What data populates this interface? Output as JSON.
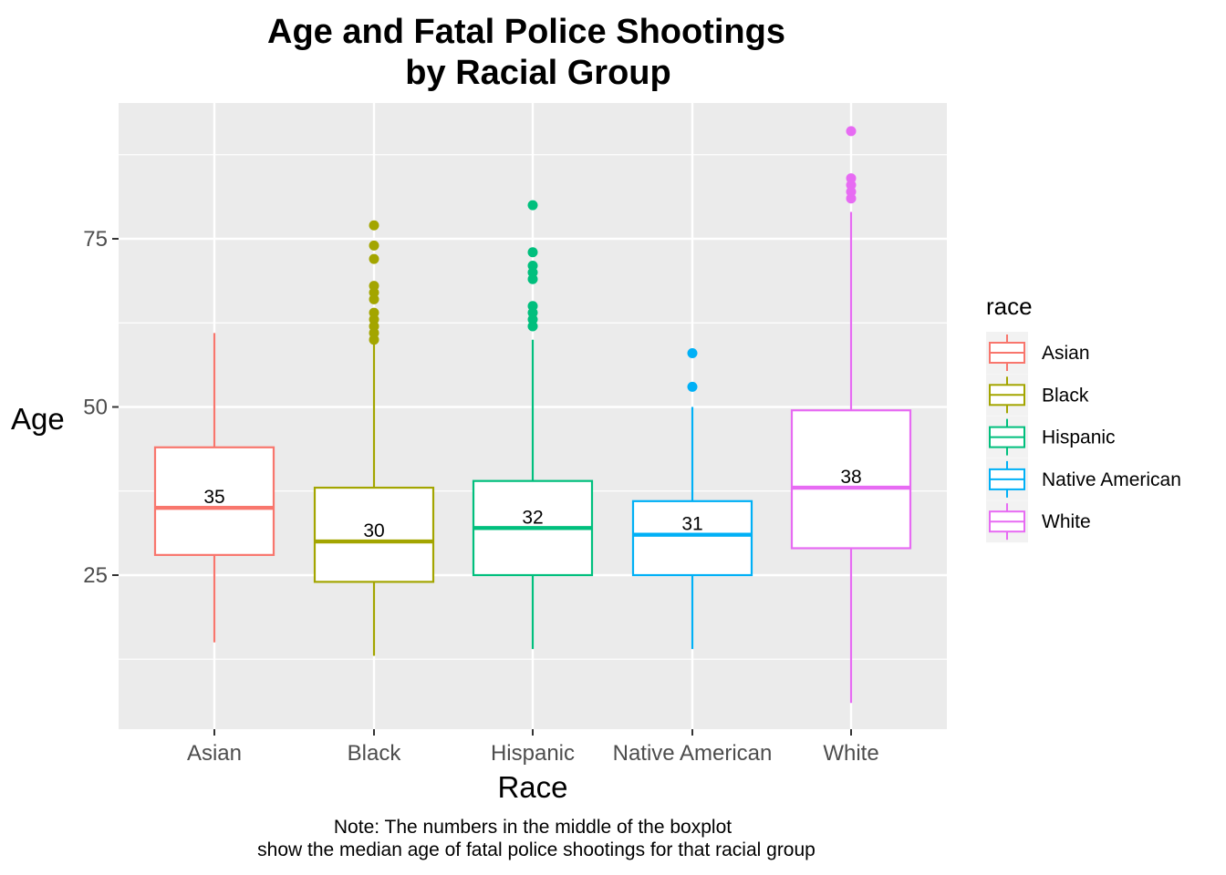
{
  "chart_data": {
    "type": "boxplot",
    "title_line1": "Age and Fatal Police Shootings",
    "title_line2": "by Racial Group",
    "xlabel": "Race",
    "ylabel": "Age",
    "ylim": [
      2,
      95
    ],
    "yticks": [
      25,
      50,
      75
    ],
    "grid": true,
    "legend": {
      "title": "race",
      "position": "right",
      "items": [
        "Asian",
        "Black",
        "Hispanic",
        "Native American",
        "White"
      ]
    },
    "caption_line1": "Note: The numbers in the middle of the boxplot",
    "caption_line2": "show the median age of fatal police shootings for that racial group",
    "categories": [
      "Asian",
      "Black",
      "Hispanic",
      "Native American",
      "White"
    ],
    "series": [
      {
        "name": "Asian",
        "color": "#F8766D",
        "min": 15,
        "q1": 28,
        "median": 35,
        "q3": 44,
        "max": 61,
        "median_label": "35",
        "outliers": []
      },
      {
        "name": "Black",
        "color": "#A3A500",
        "min": 13,
        "q1": 24,
        "median": 30,
        "q3": 38,
        "max": 60,
        "median_label": "30",
        "outliers": [
          60,
          61,
          62,
          63,
          64,
          66,
          67,
          68,
          72,
          74,
          77
        ]
      },
      {
        "name": "Hispanic",
        "color": "#00BF7D",
        "min": 14,
        "q1": 25,
        "median": 32,
        "q3": 39,
        "max": 60,
        "median_label": "32",
        "outliers": [
          62,
          63,
          64,
          65,
          69,
          70,
          71,
          73,
          80
        ]
      },
      {
        "name": "Native American",
        "color": "#00B0F6",
        "min": 14,
        "q1": 25,
        "median": 31,
        "q3": 36,
        "max": 50,
        "median_label": "31",
        "outliers": [
          53,
          58
        ]
      },
      {
        "name": "White",
        "color": "#E76BF3",
        "min": 6,
        "q1": 29,
        "median": 38,
        "q3": 49.5,
        "max": 79,
        "median_label": "38",
        "outliers": [
          81,
          82,
          83,
          84,
          91
        ]
      }
    ]
  }
}
